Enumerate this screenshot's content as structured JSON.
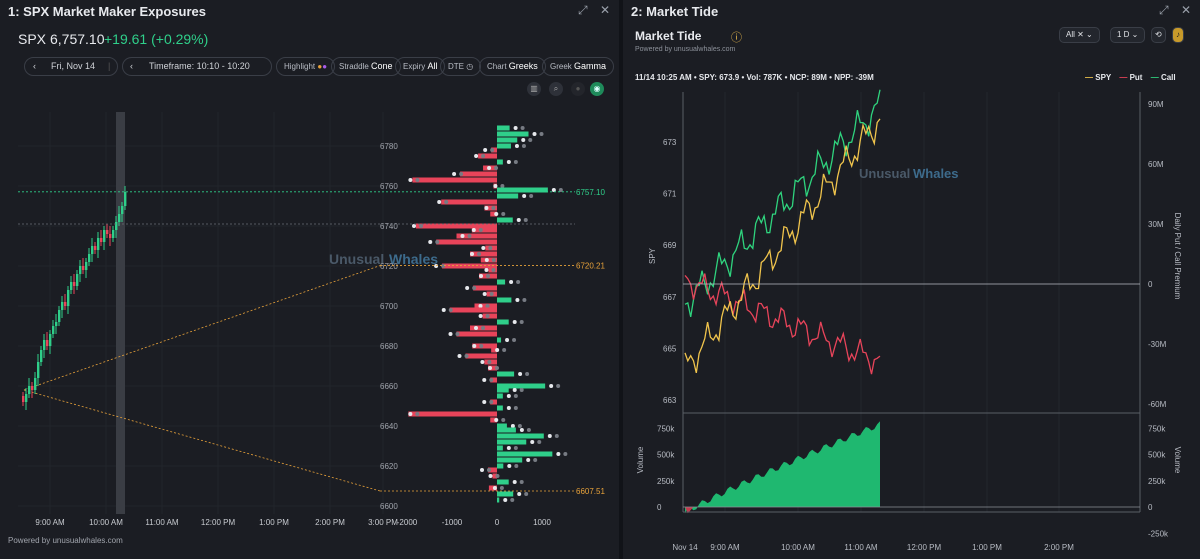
{
  "left": {
    "title": "1: SPX Market Maker Exposures",
    "ticker": "SPX",
    "price": "6,757.10",
    "change": "+19.61 (+0.29%)",
    "date": "Fri, Nov 14",
    "timeframe": "Timeframe: 10:10 - 10:20",
    "chips": [
      {
        "label": "Highlight",
        "value": ""
      },
      {
        "label": "Straddle",
        "value": "Cone"
      },
      {
        "label": "Expiry",
        "value": "All"
      },
      {
        "label": "DTE",
        "value": ""
      },
      {
        "label": "Chart",
        "value": "Greeks"
      },
      {
        "label": "Greek",
        "value": "Gamma"
      }
    ],
    "watermark_a": "Unusual",
    "watermark_b": "Whales",
    "price_levels": [
      "6780",
      "6760",
      "6740",
      "6720",
      "6700",
      "6680",
      "6660",
      "6640",
      "6620",
      "6600"
    ],
    "time_labels": [
      "9:00 AM",
      "10:00 AM",
      "11:00 AM",
      "12:00 PM",
      "1:00 PM",
      "2:00 PM",
      "3:00 PM"
    ],
    "exposure_ticks": [
      "-2000",
      "-1000",
      "0",
      "1000"
    ],
    "markers": {
      "current": "6757.10",
      "upper": "6720.21",
      "lower": "6607.51"
    },
    "footer": "Powered by unusualwhales.com",
    "gamma_bars": [
      {
        "strike": 6789,
        "v": 280
      },
      {
        "strike": 6786,
        "v": 700
      },
      {
        "strike": 6783,
        "v": 450
      },
      {
        "strike": 6780,
        "v": 310
      },
      {
        "strike": 6778,
        "v": -130
      },
      {
        "strike": 6775,
        "v": -420
      },
      {
        "strike": 6772,
        "v": 130
      },
      {
        "strike": 6769,
        "v": -310
      },
      {
        "strike": 6766,
        "v": -820
      },
      {
        "strike": 6763,
        "v": -1880
      },
      {
        "strike": 6760,
        "v": -80
      },
      {
        "strike": 6758,
        "v": 1130
      },
      {
        "strike": 6755,
        "v": 470
      },
      {
        "strike": 6752,
        "v": -1240
      },
      {
        "strike": 6749,
        "v": -280
      },
      {
        "strike": 6746,
        "v": -150
      },
      {
        "strike": 6743,
        "v": 350
      },
      {
        "strike": 6740,
        "v": -1800
      },
      {
        "strike": 6738,
        "v": -560
      },
      {
        "strike": 6735,
        "v": -900
      },
      {
        "strike": 6732,
        "v": -1350
      },
      {
        "strike": 6729,
        "v": -260
      },
      {
        "strike": 6726,
        "v": -600
      },
      {
        "strike": 6723,
        "v": -360
      },
      {
        "strike": 6720,
        "v": -1220
      },
      {
        "strike": 6718,
        "v": -190
      },
      {
        "strike": 6715,
        "v": -400
      },
      {
        "strike": 6712,
        "v": 180
      },
      {
        "strike": 6709,
        "v": -530
      },
      {
        "strike": 6706,
        "v": -230
      },
      {
        "strike": 6703,
        "v": 320
      },
      {
        "strike": 6700,
        "v": -500
      },
      {
        "strike": 6698,
        "v": -1050
      },
      {
        "strike": 6695,
        "v": -320
      },
      {
        "strike": 6692,
        "v": 260
      },
      {
        "strike": 6689,
        "v": -600
      },
      {
        "strike": 6686,
        "v": -900
      },
      {
        "strike": 6683,
        "v": 90
      },
      {
        "strike": 6680,
        "v": -550
      },
      {
        "strike": 6678,
        "v": -130
      },
      {
        "strike": 6675,
        "v": -700
      },
      {
        "strike": 6672,
        "v": -280
      },
      {
        "strike": 6669,
        "v": -200
      },
      {
        "strike": 6666,
        "v": 380
      },
      {
        "strike": 6663,
        "v": -150
      },
      {
        "strike": 6660,
        "v": 1070
      },
      {
        "strike": 6658,
        "v": 260
      },
      {
        "strike": 6655,
        "v": 130
      },
      {
        "strike": 6652,
        "v": -150
      },
      {
        "strike": 6649,
        "v": 130
      },
      {
        "strike": 6646,
        "v": -1970
      },
      {
        "strike": 6643,
        "v": -150
      },
      {
        "strike": 6640,
        "v": 220
      },
      {
        "strike": 6638,
        "v": 420
      },
      {
        "strike": 6635,
        "v": 1040
      },
      {
        "strike": 6632,
        "v": 650
      },
      {
        "strike": 6629,
        "v": 130
      },
      {
        "strike": 6626,
        "v": 1230
      },
      {
        "strike": 6623,
        "v": 560
      },
      {
        "strike": 6620,
        "v": 140
      },
      {
        "strike": 6618,
        "v": -200
      },
      {
        "strike": 6615,
        "v": -100
      },
      {
        "strike": 6612,
        "v": 260
      },
      {
        "strike": 6609,
        "v": -180
      },
      {
        "strike": 6606,
        "v": 360
      },
      {
        "strike": 6603,
        "v": 50
      }
    ]
  },
  "right": {
    "title": "2: Market Tide",
    "heading": "Market Tide",
    "powered": "Powered by unusualwhales.com",
    "filter": "All",
    "range": "1 D",
    "stats": [
      "11/14 10:25 AM",
      "SPY: 673.9",
      "Vol: 787K",
      "NCP: 89M",
      "NPP: -39M"
    ],
    "legend": [
      {
        "name": "SPY",
        "color": "#f0c44c"
      },
      {
        "name": "Put",
        "color": "#e8445a"
      },
      {
        "name": "Call",
        "color": "#2fd47e"
      }
    ],
    "watermark_a": "Unusual",
    "watermark_b": "Whales",
    "spy_ticks": [
      "673",
      "671",
      "669",
      "667",
      "665",
      "663"
    ],
    "premium_ticks": [
      "90M",
      "60M",
      "30M",
      "0",
      "-30M",
      "-60M"
    ],
    "vol_ticks_left": [
      "750k",
      "500k",
      "250k",
      "0"
    ],
    "vol_ticks_right": [
      "750k",
      "500k",
      "250k",
      "0",
      "-250k"
    ],
    "axis_left": "SPY",
    "axis_right": "Daily Put / Call Premium",
    "axis_vol": "Volume",
    "time_labels": [
      "Nov 14",
      "9:00 AM",
      "10:00 AM",
      "11:00 AM",
      "12:00 PM",
      "1:00 PM",
      "2:00 PM"
    ]
  }
}
